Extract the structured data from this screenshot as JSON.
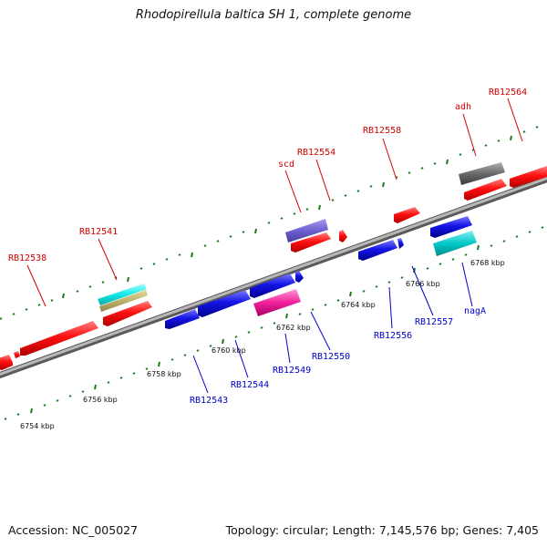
{
  "title": "Rhodopirellula baltica SH 1, complete genome",
  "footer": {
    "accession": "Accession: NC_005027",
    "summary": "Topology: circular; Length: 7,145,576 bp; Genes: 7,405"
  },
  "colors": {
    "forward_gene": "#ff1a1a",
    "reverse_gene": "#1a1ae6",
    "backbone": "#8f8f8f",
    "scale_tick": "#1f7a1f",
    "forward_label": "#d00000",
    "reverse_label": "#0000c8"
  },
  "scale_labels": [
    "6754 kbp",
    "6756 kbp",
    "6758 kbp",
    "6760 kbp",
    "6762 kbp",
    "6764 kbp",
    "6766 kbp",
    "6768 kbp"
  ],
  "forward_labels": [
    "RB12538",
    "RB12541",
    "scd",
    "RB12554",
    "RB12558",
    "adh",
    "RB12564"
  ],
  "reverse_labels": [
    "RB12543",
    "RB12544",
    "RB12549",
    "RB12550",
    "RB12556",
    "RB12557",
    "nagA"
  ]
}
